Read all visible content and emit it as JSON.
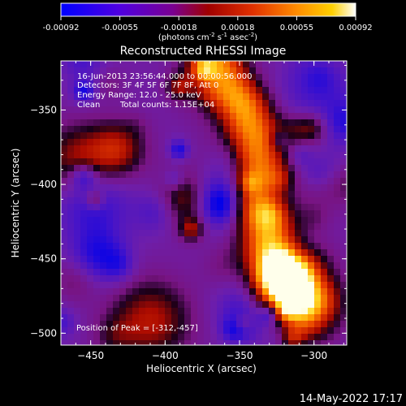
{
  "colorbar": {
    "ticks": [
      "-0.00092",
      "-0.00055",
      "-0.00018",
      "0.00018",
      "0.00055",
      "0.00092"
    ],
    "units_main": "(photons cm",
    "units_sup1": "-2",
    "units_mid1": " s",
    "units_sup2": "-1",
    "units_mid2": " asec",
    "units_sup3": "-2",
    "units_end": ")",
    "colors": [
      "#0000ff",
      "#5b00e0",
      "#8a00a0",
      "#b40000",
      "#e23a00",
      "#ff8c00",
      "#ffd000",
      "#ffffff"
    ]
  },
  "title": "Reconstructed RHESSI Image",
  "info": {
    "line1": "16-Jun-2013 23:56:44.000 to 00:00:56.000",
    "line2": "Detectors: 3F 4F 5F 6F 7F 8F, Att 0",
    "line3": "Energy Range: 12.0 - 25.0 keV",
    "line4_a": "Clean",
    "line4_b": "Total counts: 1.15E+04",
    "peak": "Position of Peak = [-312,-457]"
  },
  "timestamp": "14-May-2022 17:17",
  "chart_data": {
    "type": "heatmap",
    "title": "Reconstructed RHESSI Image",
    "xlabel": "Heliocentric X (arcsec)",
    "ylabel": "Heliocentric Y (arcsec)",
    "xlim": [
      -470,
      -278
    ],
    "ylim": [
      -508,
      -317
    ],
    "xticks": [
      -450,
      -400,
      -350,
      -300
    ],
    "yticks": [
      -350,
      -400,
      -450,
      -500
    ],
    "peak": [
      -312,
      -457
    ],
    "peak_value": 0.00092,
    "value_range": [
      -0.00092,
      0.00092
    ]
  }
}
